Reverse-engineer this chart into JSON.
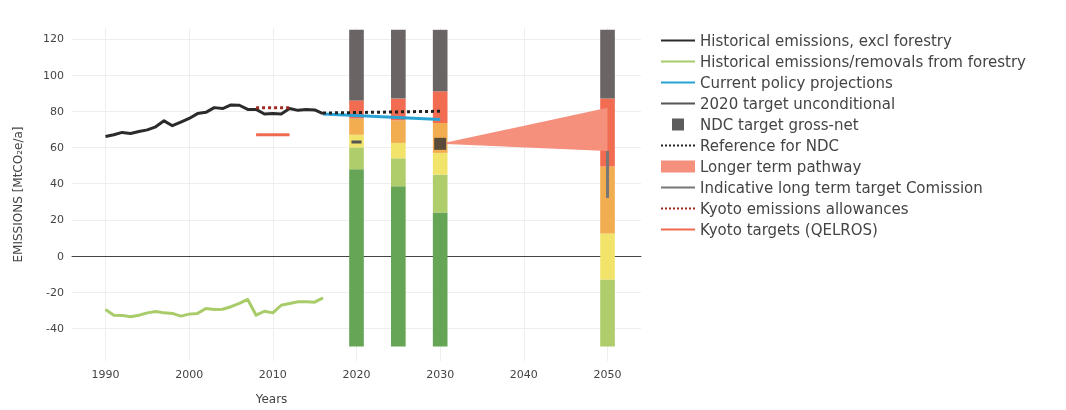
{
  "chart_data": {
    "type": "line",
    "xlabel": "Years",
    "ylabel": "EMISSIONS [MtCO₂e/a]",
    "xlim": [
      1986,
      2054
    ],
    "ylim": [
      -58,
      126
    ],
    "xticks": [
      1990,
      2000,
      2010,
      2020,
      2030,
      2040,
      2050
    ],
    "yticks": [
      -40,
      -20,
      0,
      20,
      40,
      60,
      80,
      100,
      120
    ],
    "grid": true,
    "legend": "right",
    "marker": "none",
    "series": [
      {
        "name": "Historical emissions, excl forestry",
        "color": "#2b2b2b",
        "x": [
          1990,
          1991,
          1992,
          1993,
          1994,
          1995,
          1996,
          1997,
          1998,
          1999,
          2000,
          2001,
          2002,
          2003,
          2004,
          2005,
          2006,
          2007,
          2008,
          2009,
          2010,
          2011,
          2012,
          2013,
          2014,
          2015,
          2016
        ],
        "values": [
          66,
          67,
          68.3,
          67.7,
          68.8,
          69.7,
          71.4,
          74.7,
          72,
          74,
          76,
          78.7,
          79.4,
          82,
          81.5,
          83.5,
          83.3,
          81,
          81,
          78.5,
          78.7,
          78.5,
          81.5,
          80.5,
          81,
          80.7,
          78.7
        ]
      },
      {
        "name": "Historical emissions/removals from forestry",
        "color": "#a9cc6a",
        "x": [
          1990,
          1991,
          1992,
          1993,
          1994,
          1995,
          1996,
          1997,
          1998,
          1999,
          2000,
          2001,
          2002,
          2003,
          2004,
          2005,
          2006,
          2007,
          2008,
          2009,
          2010,
          2011,
          2012,
          2013,
          2014,
          2015,
          2016
        ],
        "values": [
          -29.5,
          -32.7,
          -32.8,
          -33.6,
          -32.7,
          -31.4,
          -30.6,
          -31.4,
          -31.7,
          -33.2,
          -32.1,
          -31.7,
          -29,
          -29.5,
          -29.4,
          -28,
          -26.2,
          -24,
          -32.7,
          -30.5,
          -31.4,
          -27.2,
          -26.2,
          -25.3,
          -25.3,
          -25.5,
          -23.1
        ]
      },
      {
        "name": "Current policy projections",
        "color": "#29a3d4",
        "x": [
          2016,
          2030
        ],
        "values": [
          78.5,
          75.5
        ]
      },
      {
        "name": "2020 target unconditional",
        "color": "#555555",
        "x": [
          2019.4,
          2020.6
        ],
        "values": [
          63,
          63
        ]
      },
      {
        "name": "NDC target gross-net",
        "type": "scatter",
        "color": "#333333",
        "marker": "square",
        "x": [
          2030
        ],
        "values": [
          62
        ]
      },
      {
        "name": "Reference for NDC",
        "color": "#222222",
        "line_style": "dotted",
        "x": [
          2016,
          2030
        ],
        "values": [
          79,
          80
        ]
      },
      {
        "name": "Longer term pathway",
        "type": "area",
        "color": "#f4907c",
        "x": [
          2030,
          2050
        ],
        "values": [
          null,
          null
        ],
        "lower": [
          62,
          58
        ],
        "upper": [
          62,
          82
        ]
      },
      {
        "name": "Indicative long term target Comission",
        "color": "#777777",
        "x": [
          2050,
          2050
        ],
        "values": [
          32,
          58
        ]
      },
      {
        "name": "Kyoto emissions allowances",
        "color": "#a0281e",
        "line_style": "dotted",
        "x": [
          2008,
          2012
        ],
        "values": [
          82,
          82
        ]
      },
      {
        "name": "Kyoto targets (QELROS)",
        "color": "#f06a50",
        "x": [
          2008,
          2012
        ],
        "values": [
          67,
          67
        ]
      },
      {
        "type": "bar",
        "color": "#66a555",
        "x": [
          2020,
          2025,
          2030
        ],
        "base": [
          -50,
          -50,
          -50
        ],
        "values": [
          98,
          88.5,
          74
        ]
      },
      {
        "type": "bar",
        "color": "#b0cd6c",
        "x": [
          2020,
          2025,
          2030,
          2050
        ],
        "base": [
          48,
          38.5,
          24,
          -50
        ],
        "values": [
          12,
          15.5,
          21,
          37
        ]
      },
      {
        "type": "bar",
        "color": "#f2e46b",
        "x": [
          2020,
          2025,
          2030,
          2050
        ],
        "base": [
          60,
          54,
          45,
          -13
        ],
        "values": [
          7,
          8.5,
          12,
          25.5
        ]
      },
      {
        "type": "bar",
        "color": "#f2ad51",
        "x": [
          2020,
          2025,
          2030,
          2050
        ],
        "base": [
          67,
          62.5,
          57,
          12.5
        ],
        "values": [
          9,
          12.5,
          16.5,
          37
        ]
      },
      {
        "type": "bar",
        "color": "#f16c50",
        "x": [
          2020,
          2025,
          2030,
          2050
        ],
        "base": [
          76,
          75,
          73.5,
          49.5
        ],
        "values": [
          10,
          12,
          17.5,
          37.5
        ]
      },
      {
        "type": "bar",
        "color": "#6a6464",
        "x": [
          2020,
          2025,
          2030,
          2050
        ],
        "base": [
          86,
          87,
          91,
          87
        ],
        "values": [
          39,
          38,
          34,
          38
        ]
      }
    ]
  }
}
